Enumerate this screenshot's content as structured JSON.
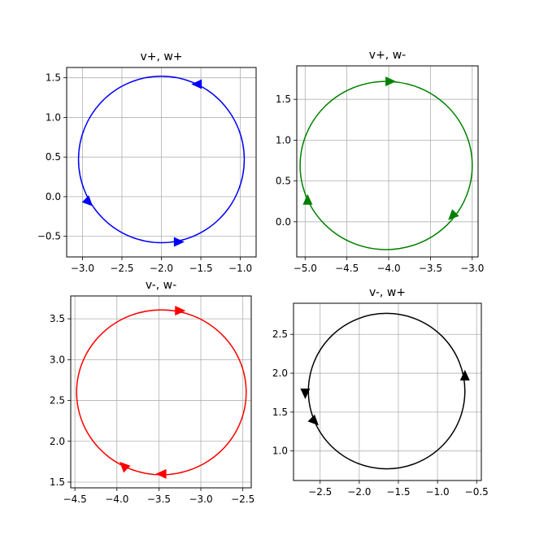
{
  "chart_data": [
    {
      "type": "line",
      "title": "v+, w+",
      "color": "#0000ff",
      "xlim": [
        -3.2,
        -0.8
      ],
      "ylim": [
        -0.76,
        1.63
      ],
      "xticks": [
        -3.0,
        -2.5,
        -2.0,
        -1.5,
        -1.0
      ],
      "xtick_labels": [
        "−3.0",
        "−2.5",
        "−2.0",
        "−1.5",
        "−1.0"
      ],
      "yticks": [
        -0.5,
        0.0,
        0.5,
        1.0,
        1.5
      ],
      "ytick_labels": [
        "−0.5",
        "0.0",
        "0.5",
        "1.0",
        "1.5"
      ],
      "grid": true,
      "circle": {
        "center": [
          -2.0,
          0.47
        ],
        "radius": 1.05
      },
      "arrows": [
        {
          "x": -1.55,
          "y": 1.42,
          "direction": "left"
        },
        {
          "x": -2.92,
          "y": -0.07,
          "direction": "down-right"
        },
        {
          "x": -1.78,
          "y": -0.57,
          "direction": "right"
        }
      ]
    },
    {
      "type": "line",
      "title": "v+, w-",
      "color": "#008000",
      "xlim": [
        -5.1,
        -2.93
      ],
      "ylim": [
        -0.43,
        1.91
      ],
      "xticks": [
        -5.0,
        -4.5,
        -4.0,
        -3.5,
        -3.0
      ],
      "xtick_labels": [
        "−5.0",
        "−4.5",
        "−4.0",
        "−3.5",
        "−3.0"
      ],
      "yticks": [
        0.0,
        0.5,
        1.0,
        1.5
      ],
      "ytick_labels": [
        "0.0",
        "0.5",
        "1.0",
        "1.5"
      ],
      "grid": true,
      "circle": {
        "center": [
          -4.03,
          0.69
        ],
        "radius": 1.03
      },
      "arrows": [
        {
          "x": -3.98,
          "y": 1.72,
          "direction": "right"
        },
        {
          "x": -4.97,
          "y": 0.27,
          "direction": "up"
        },
        {
          "x": -3.24,
          "y": 0.07,
          "direction": "down-left"
        }
      ]
    },
    {
      "type": "line",
      "title": "v-, w-",
      "color": "#ff0000",
      "xlim": [
        -4.55,
        -2.4
      ],
      "ylim": [
        1.43,
        3.78
      ],
      "xticks": [
        -4.5,
        -4.0,
        -3.5,
        -3.0,
        -2.5
      ],
      "xtick_labels": [
        "−4.5",
        "−4.0",
        "−3.5",
        "−3.0",
        "−2.5"
      ],
      "yticks": [
        1.5,
        2.0,
        2.5,
        3.0,
        3.5
      ],
      "ytick_labels": [
        "1.5",
        "2.0",
        "2.5",
        "3.0",
        "3.5"
      ],
      "grid": true,
      "circle": {
        "center": [
          -3.47,
          2.6
        ],
        "radius": 1.01
      },
      "arrows": [
        {
          "x": -3.25,
          "y": 3.6,
          "direction": "right"
        },
        {
          "x": -3.92,
          "y": 1.7,
          "direction": "up-left"
        },
        {
          "x": -3.47,
          "y": 1.6,
          "direction": "left"
        }
      ]
    },
    {
      "type": "line",
      "title": "v-, w+",
      "color": "#000000",
      "xlim": [
        -2.84,
        -0.44
      ],
      "ylim": [
        0.62,
        2.9
      ],
      "xticks": [
        -2.5,
        -2.0,
        -1.5,
        -1.0,
        -0.5
      ],
      "xtick_labels": [
        "−2.5",
        "−2.0",
        "−1.5",
        "−1.0",
        "−0.5"
      ],
      "yticks": [
        1.0,
        1.5,
        2.0,
        2.5
      ],
      "ytick_labels": [
        "1.0",
        "1.5",
        "2.0",
        "2.5"
      ],
      "grid": true,
      "circle": {
        "center": [
          -1.65,
          1.77
        ],
        "radius": 1.0
      },
      "arrows": [
        {
          "x": -0.65,
          "y": 1.97,
          "direction": "up"
        },
        {
          "x": -2.69,
          "y": 1.74,
          "direction": "down"
        },
        {
          "x": -2.57,
          "y": 1.38,
          "direction": "down-right"
        }
      ]
    }
  ]
}
